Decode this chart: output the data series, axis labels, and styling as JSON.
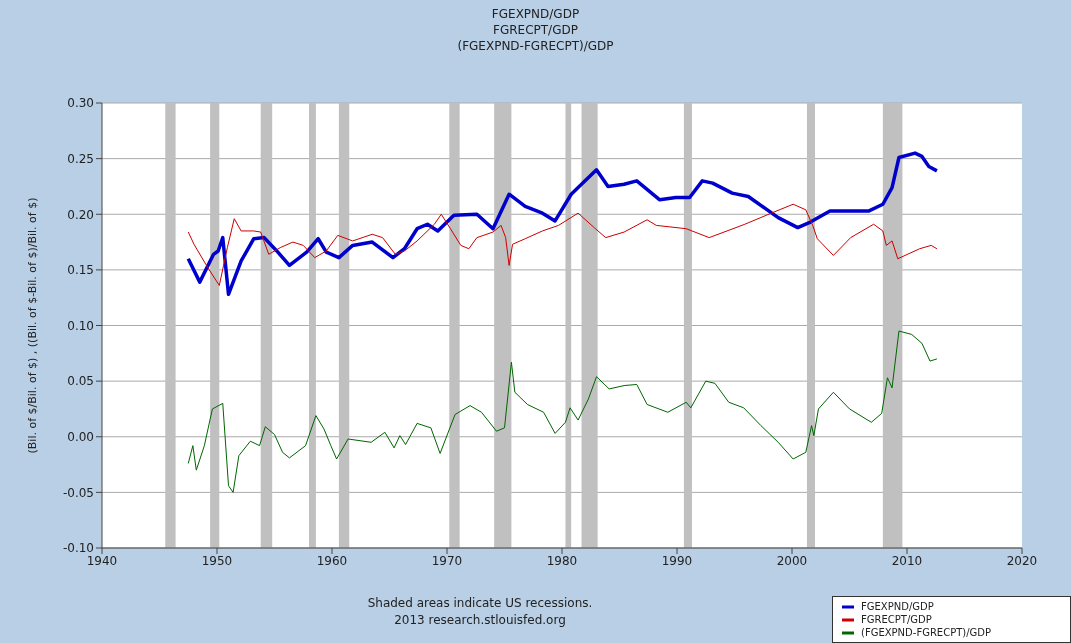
{
  "chart_data": {
    "type": "line",
    "title": "FGEXPND/GDP\nFGRECPT/GDP\n(FGEXPND-FGRECPT)/GDP",
    "ylabel": "(Bil. of $/Bil. of $) , ((Bil. of $-Bil. of $)/Bil. of $)",
    "annotations": [
      "Shaded areas indicate US recessions.",
      "2013 research.stlouisfed.org"
    ],
    "xlim": [
      1940,
      2020
    ],
    "xticks": [
      1940,
      1950,
      1960,
      1970,
      1980,
      1990,
      2000,
      2010,
      2020
    ],
    "ylim": [
      -0.1,
      0.3
    ],
    "yticks": [
      {
        "value": -0.1,
        "label": "-0.10"
      },
      {
        "value": -0.05,
        "label": "-0.05"
      },
      {
        "value": 0,
        "label": "0.00"
      },
      {
        "value": 0.05,
        "label": "0.05"
      },
      {
        "value": 0.1,
        "label": "0.10"
      },
      {
        "value": 0.15,
        "label": "0.15"
      },
      {
        "value": 0.2,
        "label": "0.20"
      },
      {
        "value": 0.25,
        "label": "0.25"
      },
      {
        "value": 0.3,
        "label": "0.30"
      }
    ],
    "grid": "y",
    "legend": "bottom right",
    "bands": [
      {
        "axis": "x",
        "from": 1945.5,
        "to": 1946.4,
        "color": "#c0c0c0"
      },
      {
        "axis": "x",
        "from": 1949.4,
        "to": 1950.2,
        "color": "#c0c0c0"
      },
      {
        "axis": "x",
        "from": 1953.8,
        "to": 1954.8,
        "color": "#c0c0c0"
      },
      {
        "axis": "x",
        "from": 1958.0,
        "to": 1958.6,
        "color": "#c0c0c0"
      },
      {
        "axis": "x",
        "from": 1960.6,
        "to": 1961.5,
        "color": "#c0c0c0"
      },
      {
        "axis": "x",
        "from": 1970.2,
        "to": 1971.1,
        "color": "#c0c0c0"
      },
      {
        "axis": "x",
        "from": 1974.1,
        "to": 1975.6,
        "color": "#c0c0c0"
      },
      {
        "axis": "x",
        "from": 1980.3,
        "to": 1980.8,
        "color": "#c0c0c0"
      },
      {
        "axis": "x",
        "from": 1981.7,
        "to": 1983.1,
        "color": "#c0c0c0"
      },
      {
        "axis": "x",
        "from": 1990.6,
        "to": 1991.3,
        "color": "#c0c0c0"
      },
      {
        "axis": "x",
        "from": 2001.3,
        "to": 2002.0,
        "color": "#c0c0c0"
      },
      {
        "axis": "x",
        "from": 2007.9,
        "to": 2009.6,
        "color": "#c0c0c0"
      }
    ],
    "series": [
      {
        "name": "FGEXPND/GDP",
        "color": "#0000cc",
        "x": [
          1947.5,
          1948.5,
          1949.7,
          1950.1,
          1950.5,
          1951.0,
          1952.1,
          1953.2,
          1954.1,
          1955.2,
          1956.3,
          1957.8,
          1958.8,
          1959.5,
          1960.6,
          1961.8,
          1963.5,
          1965.3,
          1966.3,
          1967.4,
          1968.3,
          1969.2,
          1970.6,
          1972.6,
          1974.0,
          1975.4,
          1976.8,
          1978.3,
          1979.4,
          1980.8,
          1983.0,
          1984.0,
          1985.4,
          1986.5,
          1988.5,
          1989.9,
          1991.1,
          1992.2,
          1993.1,
          1994.8,
          1996.2,
          1998.8,
          2000.5,
          2001.6,
          2003.3,
          2006.7,
          2007.9,
          2008.7,
          2009.3,
          2010.7,
          2011.3,
          2011.9,
          2012.6
        ],
        "values": [
          0.16,
          0.139,
          0.164,
          0.167,
          0.179,
          0.128,
          0.158,
          0.178,
          0.179,
          0.167,
          0.154,
          0.166,
          0.178,
          0.166,
          0.161,
          0.172,
          0.175,
          0.161,
          0.169,
          0.187,
          0.191,
          0.185,
          0.199,
          0.2,
          0.187,
          0.218,
          0.207,
          0.201,
          0.194,
          0.218,
          0.24,
          0.225,
          0.227,
          0.23,
          0.213,
          0.215,
          0.215,
          0.23,
          0.228,
          0.219,
          0.216,
          0.197,
          0.188,
          0.193,
          0.203,
          0.203,
          0.209,
          0.224,
          0.251,
          0.255,
          0.252,
          0.243,
          0.239
        ]
      },
      {
        "name": "FGRECPT/GDP",
        "color": "#cc0000",
        "x": [
          1947.5,
          1948.0,
          1949.2,
          1950.2,
          1950.9,
          1951.5,
          1952.1,
          1953.2,
          1953.8,
          1954.5,
          1955.5,
          1956.6,
          1957.5,
          1958.5,
          1959.5,
          1960.5,
          1961.8,
          1963.5,
          1964.4,
          1965.5,
          1966.3,
          1967.4,
          1968.9,
          1969.5,
          1970.3,
          1971.2,
          1971.9,
          1972.6,
          1974.0,
          1974.7,
          1975.1,
          1975.4,
          1975.7,
          1976.8,
          1978.3,
          1979.7,
          1981.4,
          1982.8,
          1983.8,
          1985.4,
          1987.4,
          1988.2,
          1990.8,
          1992.8,
          1995.9,
          1998.2,
          2000.1,
          2001.2,
          2001.8,
          2002.2,
          2003.6,
          2005.1,
          2007.1,
          2007.9,
          2008.2,
          2008.7,
          2009.2,
          2011.1,
          2012.1,
          2012.6
        ],
        "values": [
          0.184,
          0.173,
          0.152,
          0.136,
          0.17,
          0.196,
          0.185,
          0.185,
          0.184,
          0.164,
          0.17,
          0.175,
          0.172,
          0.161,
          0.167,
          0.181,
          0.176,
          0.182,
          0.179,
          0.164,
          0.167,
          0.176,
          0.191,
          0.2,
          0.187,
          0.172,
          0.169,
          0.179,
          0.184,
          0.19,
          0.179,
          0.154,
          0.173,
          0.178,
          0.185,
          0.19,
          0.201,
          0.188,
          0.179,
          0.184,
          0.195,
          0.19,
          0.187,
          0.179,
          0.191,
          0.201,
          0.209,
          0.204,
          0.19,
          0.178,
          0.163,
          0.179,
          0.191,
          0.185,
          0.172,
          0.176,
          0.16,
          0.169,
          0.172,
          0.169
        ]
      },
      {
        "name": "(FGEXPND-FGRECPT)/GDP",
        "color": "#006600",
        "x": [
          1947.5,
          1947.9,
          1948.2,
          1948.9,
          1949.6,
          1950.5,
          1951.0,
          1951.4,
          1951.9,
          1952.9,
          1953.7,
          1954.2,
          1955.0,
          1955.7,
          1956.3,
          1957.7,
          1958.6,
          1959.3,
          1959.9,
          1960.4,
          1961.4,
          1963.4,
          1964.6,
          1965.4,
          1965.9,
          1966.4,
          1967.4,
          1968.6,
          1969.4,
          1970.7,
          1972.0,
          1973.0,
          1974.3,
          1975.0,
          1975.6,
          1975.9,
          1977.0,
          1978.4,
          1979.4,
          1980.3,
          1980.7,
          1981.4,
          1982.3,
          1983.0,
          1984.1,
          1985.4,
          1986.5,
          1987.4,
          1989.2,
          1990.8,
          1991.2,
          1992.5,
          1993.3,
          1994.5,
          1995.8,
          1997.3,
          1998.8,
          2000.1,
          2001.2,
          2001.7,
          2001.9,
          2002.3,
          2003.6,
          2005.0,
          2006.9,
          2007.8,
          2008.3,
          2008.7,
          2009.3,
          2010.4,
          2011.3,
          2012.0,
          2012.6
        ],
        "values": [
          -0.024,
          -0.008,
          -0.03,
          -0.008,
          0.025,
          0.03,
          -0.044,
          -0.05,
          -0.017,
          -0.004,
          -0.008,
          0.009,
          0.002,
          -0.014,
          -0.019,
          -0.008,
          0.019,
          0.007,
          -0.008,
          -0.02,
          -0.002,
          -0.005,
          0.004,
          -0.01,
          0.001,
          -0.007,
          0.012,
          0.008,
          -0.015,
          0.02,
          0.028,
          0.022,
          0.005,
          0.008,
          0.067,
          0.04,
          0.029,
          0.022,
          0.003,
          0.013,
          0.026,
          0.015,
          0.034,
          0.054,
          0.043,
          0.046,
          0.047,
          0.029,
          0.022,
          0.031,
          0.026,
          0.05,
          0.048,
          0.031,
          0.026,
          0.01,
          -0.005,
          -0.02,
          -0.014,
          0.01,
          0.001,
          0.025,
          0.04,
          0.025,
          0.013,
          0.021,
          0.053,
          0.044,
          0.095,
          0.092,
          0.084,
          0.068,
          0.07
        ]
      }
    ]
  }
}
